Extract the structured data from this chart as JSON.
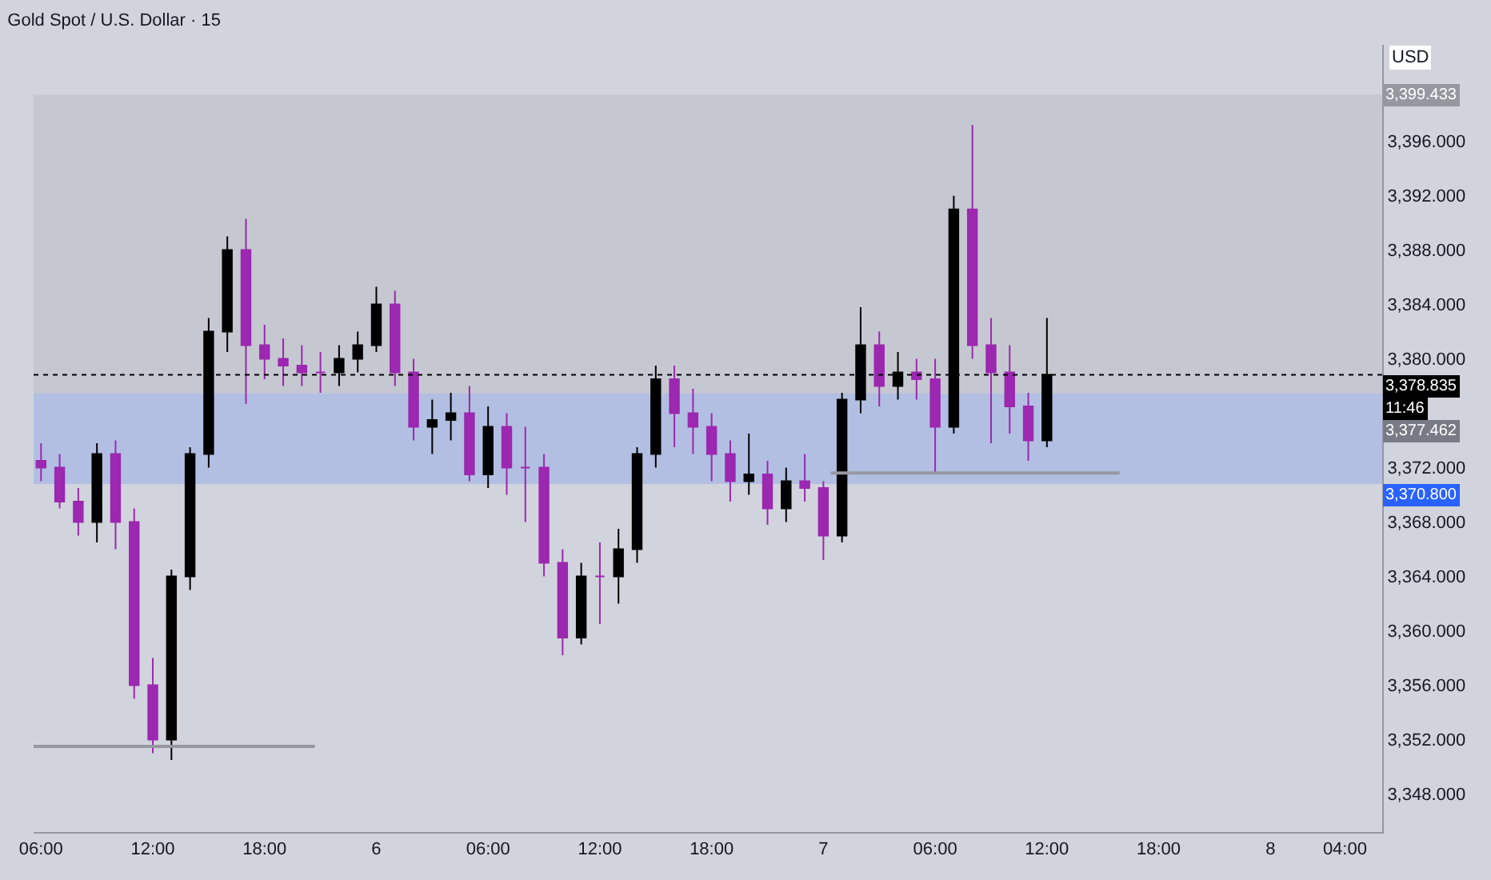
{
  "chart_data": {
    "type": "candlestick",
    "title": "Gold Spot / U.S. Dollar · 15",
    "x": [
      "--06-05T06:00",
      "--06-05T07:00",
      "--06-05T08:00",
      "--06-05T09:00",
      "--06-05T10:00",
      "--06-05T11:00",
      "--06-05T12:00",
      "--06-05T13:00",
      "--06-05T14:00",
      "--06-05T15:00",
      "--06-05T16:00",
      "--06-05T17:00",
      "--06-05T18:00",
      "--06-05T19:00",
      "--06-05T20:00",
      "--06-05T21:00",
      "--06-05T22:00",
      "--06-05T23:00",
      "--06-06T00:00",
      "--06-06T01:00",
      "--06-06T02:00",
      "--06-06T03:00",
      "--06-06T04:00",
      "--06-06T05:00",
      "--06-06T06:00",
      "--06-06T07:00",
      "--06-06T08:00",
      "--06-06T09:00",
      "--06-06T10:00",
      "--06-06T11:00",
      "--06-06T12:00",
      "--06-06T13:00",
      "--06-06T14:00",
      "--06-06T15:00",
      "--06-06T16:00",
      "--06-06T17:00",
      "--06-06T18:00",
      "--06-06T19:00",
      "--06-06T20:00",
      "--06-06T21:00",
      "--06-06T22:00",
      "--06-06T23:00",
      "--06-07T00:00",
      "--06-07T01:00",
      "--06-07T02:00",
      "--06-07T03:00",
      "--06-07T04:00",
      "--06-07T05:00",
      "--06-07T06:00",
      "--06-07T07:00",
      "--06-07T08:00",
      "--06-07T09:00",
      "--06-07T10:00",
      "--06-07T11:00",
      "--06-07T12:00"
    ],
    "ohlc": [
      [
        3372.5,
        3373.8,
        3371,
        3372
      ],
      [
        3372,
        3373,
        3369,
        3369.5
      ],
      [
        3369.5,
        3370.5,
        3367,
        3368
      ],
      [
        3368,
        3373.8,
        3366.5,
        3373
      ],
      [
        3373,
        3374,
        3366,
        3368
      ],
      [
        3368,
        3369,
        3355,
        3356
      ],
      [
        3356,
        3358,
        3351,
        3352
      ],
      [
        3352,
        3364.5,
        3350.5,
        3364
      ],
      [
        3364,
        3373.5,
        3363,
        3373
      ],
      [
        3373,
        3383,
        3372,
        3382
      ],
      [
        3382,
        3389,
        3380.5,
        3388
      ],
      [
        3388,
        3390.3,
        3376.7,
        3381
      ],
      [
        3381,
        3382.5,
        3378.5,
        3380
      ],
      [
        3380,
        3381.5,
        3378,
        3379.5
      ],
      [
        3379.5,
        3381,
        3378,
        3379
      ],
      [
        3379,
        3380.5,
        3377.5,
        3379
      ],
      [
        3379,
        3381,
        3378,
        3380
      ],
      [
        3380,
        3382,
        3379,
        3381
      ],
      [
        3381,
        3385.3,
        3380.5,
        3384
      ],
      [
        3384,
        3385,
        3378,
        3379
      ],
      [
        3379,
        3380,
        3374,
        3375
      ],
      [
        3375,
        3377,
        3373,
        3375.5
      ],
      [
        3375.5,
        3377.5,
        3374,
        3376
      ],
      [
        3376,
        3378,
        3371,
        3371.5
      ],
      [
        3371.5,
        3376.5,
        3370.5,
        3375
      ],
      [
        3375,
        3376,
        3370,
        3372
      ],
      [
        3372,
        3375,
        3368,
        3372
      ],
      [
        3372,
        3373,
        3364,
        3365
      ],
      [
        3365,
        3366,
        3358.2,
        3359.5
      ],
      [
        3359.5,
        3365,
        3359,
        3364
      ],
      [
        3364,
        3366.5,
        3360.5,
        3364
      ],
      [
        3364,
        3367.5,
        3362,
        3366
      ],
      [
        3366,
        3373.5,
        3365,
        3373
      ],
      [
        3373,
        3379.5,
        3372,
        3378.5
      ],
      [
        3378.5,
        3379.5,
        3373.5,
        3376
      ],
      [
        3376,
        3377.8,
        3373,
        3375
      ],
      [
        3375,
        3376,
        3371,
        3373
      ],
      [
        3373,
        3374,
        3369.5,
        3371
      ],
      [
        3371,
        3374.5,
        3370,
        3371.5
      ],
      [
        3371.5,
        3372.5,
        3367.8,
        3369
      ],
      [
        3369,
        3372,
        3368,
        3371
      ],
      [
        3371,
        3373,
        3369.5,
        3370.5
      ],
      [
        3370.5,
        3371,
        3365.2,
        3367
      ],
      [
        3367,
        3377.5,
        3366.5,
        3377
      ],
      [
        3377,
        3383.8,
        3376,
        3381
      ],
      [
        3381,
        3382,
        3376.5,
        3378
      ],
      [
        3378,
        3380.5,
        3377,
        3379
      ],
      [
        3379,
        3380,
        3377,
        3378.5
      ],
      [
        3378.5,
        3380,
        3371.5,
        3375
      ],
      [
        3375,
        3392,
        3374.5,
        3391
      ],
      [
        3391,
        3397.2,
        3380,
        3381
      ],
      [
        3381,
        3383,
        3373.8,
        3379
      ],
      [
        3379,
        3381,
        3374.5,
        3376.5
      ],
      [
        3376.5,
        3377.5,
        3372.5,
        3374
      ],
      [
        3374,
        3383,
        3373.5,
        3378.835
      ]
    ],
    "colors": [
      "#9c27b0",
      "#9c27b0",
      "#9c27b0",
      "#000000",
      "#9c27b0",
      "#9c27b0",
      "#9c27b0",
      "#000000",
      "#000000",
      "#000000",
      "#000000",
      "#9c27b0",
      "#9c27b0",
      "#9c27b0",
      "#9c27b0",
      "#9c27b0",
      "#000000",
      "#000000",
      "#000000",
      "#9c27b0",
      "#9c27b0",
      "#000000",
      "#000000",
      "#9c27b0",
      "#000000",
      "#9c27b0",
      "#9c27b0",
      "#9c27b0",
      "#9c27b0",
      "#000000",
      "#9c27b0",
      "#000000",
      "#000000",
      "#000000",
      "#9c27b0",
      "#9c27b0",
      "#9c27b0",
      "#9c27b0",
      "#000000",
      "#9c27b0",
      "#000000",
      "#9c27b0",
      "#9c27b0",
      "#000000",
      "#000000",
      "#9c27b0",
      "#000000",
      "#9c27b0",
      "#9c27b0",
      "#000000",
      "#9c27b0",
      "#9c27b0",
      "#9c27b0",
      "#9c27b0",
      "#000000"
    ],
    "series": [
      {
        "type": "line",
        "color": "#9598a1",
        "x": [
          "--06-05T05:36",
          "--06-05T20:42"
        ],
        "values": [
          3351.5,
          3351.5
        ]
      },
      {
        "type": "line",
        "color": "#9598a1",
        "x": [
          "--06-07T00:24",
          "--06-07T15:54"
        ],
        "values": [
          3371.6,
          3371.6
        ]
      }
    ],
    "xlim": [
      "--06-05T05:36",
      "--06-08T06:00"
    ],
    "xticks": [
      {
        "value": "--06-05T06:00",
        "label": "06:00"
      },
      {
        "value": "--06-05T12:00",
        "label": "12:00"
      },
      {
        "value": "--06-05T18:00",
        "label": "18:00"
      },
      {
        "value": "--06-06",
        "label": "6"
      },
      {
        "value": "--06-06T06:00",
        "label": "06:00"
      },
      {
        "value": "--06-06T12:00",
        "label": "12:00"
      },
      {
        "value": "--06-06T18:00",
        "label": "18:00"
      },
      {
        "value": "--06-07",
        "label": "7"
      },
      {
        "value": "--06-07T06:00",
        "label": "06:00"
      },
      {
        "value": "--06-07T12:00",
        "label": "12:00"
      },
      {
        "value": "--06-07T18:00",
        "label": "18:00"
      },
      {
        "value": "--06-08",
        "label": "8"
      },
      {
        "value": "--06-08T04:00",
        "label": "04:00"
      }
    ],
    "ylim": [
      3345.2,
      3403.1
    ],
    "yticks": [
      {
        "value": 3348,
        "label": "3,348.000"
      },
      {
        "value": 3352,
        "label": "3,352.000"
      },
      {
        "value": 3356,
        "label": "3,356.000"
      },
      {
        "value": 3360,
        "label": "3,360.000"
      },
      {
        "value": 3364,
        "label": "3,364.000"
      },
      {
        "value": 3368,
        "label": "3,368.000"
      },
      {
        "value": 3372,
        "label": "3,372.000"
      },
      {
        "value": 3380,
        "label": "3,380.000"
      },
      {
        "value": 3384,
        "label": "3,384.000"
      },
      {
        "value": 3388,
        "label": "3,388.000"
      },
      {
        "value": 3392,
        "label": "3,392.000"
      },
      {
        "value": 3396,
        "label": "3,396.000"
      }
    ],
    "ref_lines": [
      {
        "axis": "y",
        "value": 3378.835,
        "label": "3,378.835",
        "color": "#000000",
        "line_style": "dotted"
      }
    ],
    "bands": [
      {
        "axis": "y",
        "from": 3377.462,
        "to": 3399.433,
        "label": "3,399.433",
        "color": "#9598a1"
      },
      {
        "axis": "y",
        "from": 3370.8,
        "to": 3377.462,
        "label": "3,370.800",
        "color": "#2962ff"
      }
    ],
    "annotations": [
      "USD",
      "11:46",
      "3,377.462"
    ],
    "grid": false
  }
}
